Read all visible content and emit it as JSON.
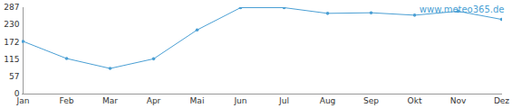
{
  "chart_data": {
    "type": "line",
    "categories": [
      "Jan",
      "Feb",
      "Mar",
      "Apr",
      "Mai",
      "Jun",
      "Jul",
      "Aug",
      "Sep",
      "Okt",
      "Nov",
      "Dez"
    ],
    "values": [
      175,
      118,
      85,
      117,
      213,
      287,
      287,
      268,
      270,
      262,
      275,
      248
    ],
    "color": "#4a9fd4",
    "marker": "circle",
    "ylim": [
      0,
      287
    ],
    "yticks": [
      0,
      57,
      115,
      172,
      230,
      287
    ],
    "grid": false,
    "annotations": [
      "www.meteo365.de"
    ]
  }
}
